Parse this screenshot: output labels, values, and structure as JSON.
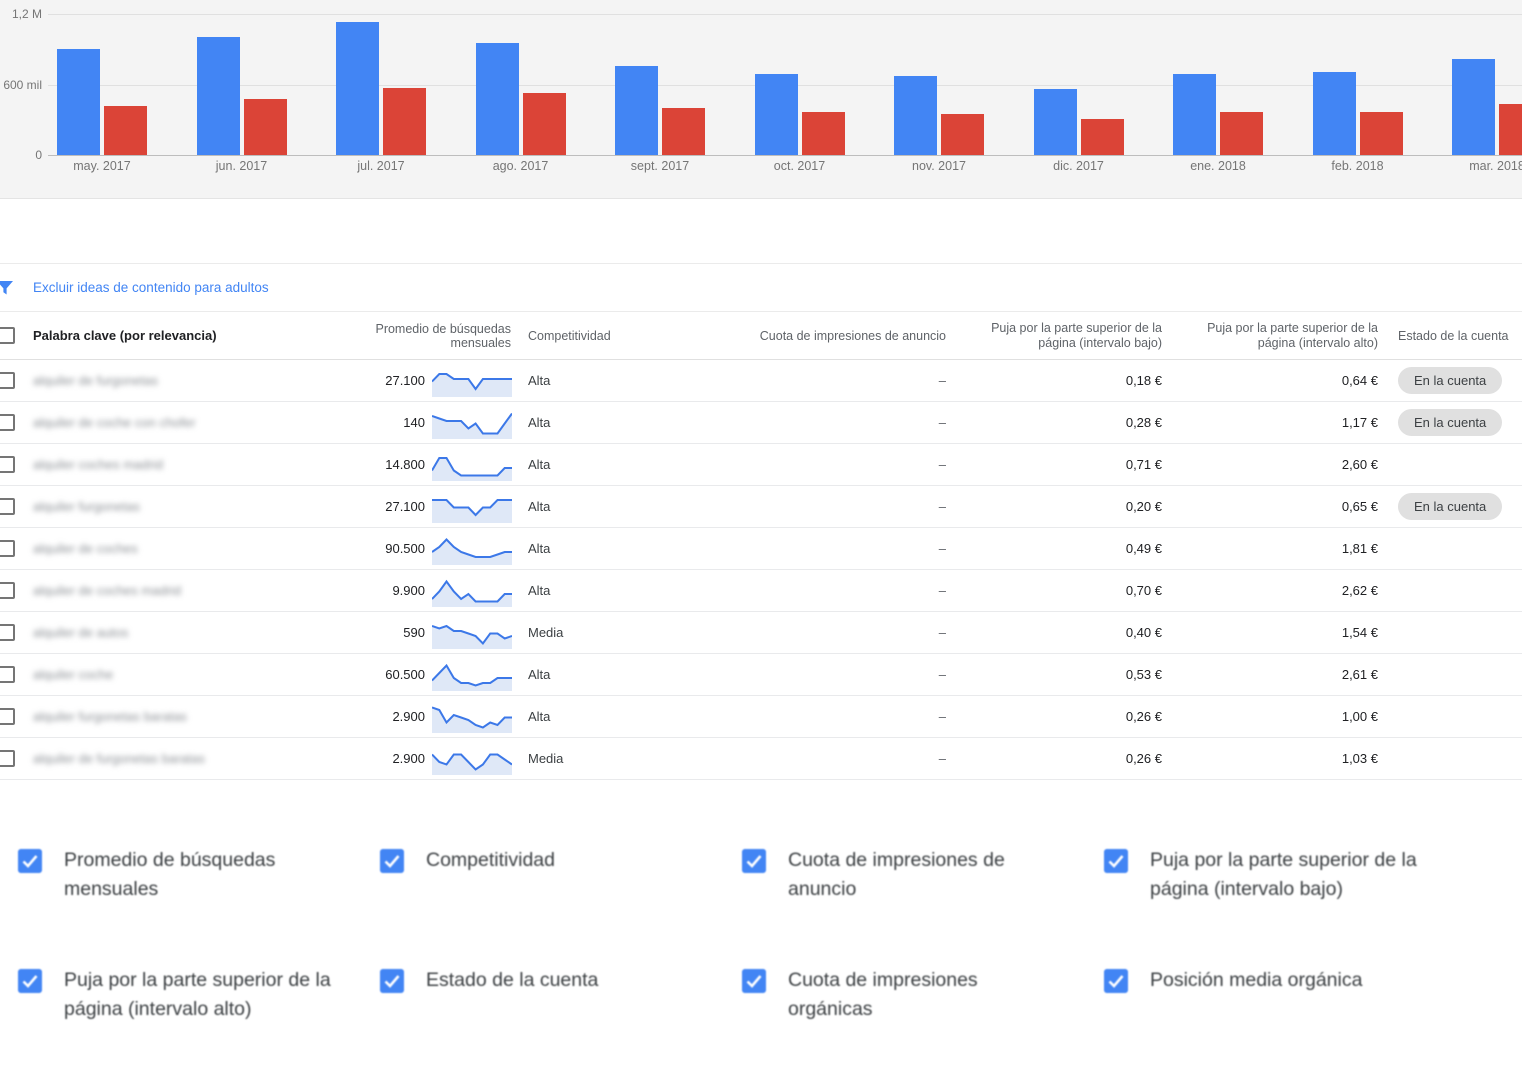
{
  "chart_data": {
    "type": "bar",
    "title": "",
    "xlabel": "",
    "ylabel": "",
    "categories": [
      "may. 2017",
      "jun. 2017",
      "jul. 2017",
      "ago. 2017",
      "sept. 2017",
      "oct. 2017",
      "nov. 2017",
      "dic. 2017",
      "ene. 2018",
      "feb. 2018",
      "mar. 2018"
    ],
    "series": [
      {
        "name": "serie-azul",
        "color": "#4285f4",
        "values": [
          900000,
          1000000,
          1130000,
          950000,
          760000,
          690000,
          670000,
          560000,
          690000,
          710000,
          820000
        ]
      },
      {
        "name": "serie-roja",
        "color": "#db4437",
        "values": [
          420000,
          480000,
          570000,
          530000,
          400000,
          370000,
          350000,
          310000,
          370000,
          370000,
          430000
        ]
      }
    ],
    "ylim": [
      0,
      1200000
    ],
    "yticks": [
      {
        "value": 1200000,
        "label": "1,2 M"
      },
      {
        "value": 600000,
        "label": "600 mil"
      },
      {
        "value": 0,
        "label": "0"
      }
    ],
    "grid": true,
    "legend": "none"
  },
  "filter": {
    "icon": "funnel-icon",
    "label": "Excluir ideas de contenido para adultos"
  },
  "table": {
    "columns": {
      "keyword": "Palabra clave (por relevancia)",
      "avg_searches": "Promedio de búsquedas mensuales",
      "competition": "Competitividad",
      "ad_impression_share": "Cuota de impresiones de anuncio",
      "bid_low": "Puja por la parte superior de la página (intervalo bajo)",
      "bid_high": "Puja por la parte superior de la página (intervalo alto)",
      "account_status": "Estado de la cuenta"
    },
    "rows": [
      {
        "keyword": "alquiler de furgonetas",
        "avg": "27.100",
        "trend": [
          5,
          8,
          8,
          6,
          6,
          6,
          2,
          6,
          6,
          6,
          6,
          6
        ],
        "competition": "Alta",
        "share": "–",
        "low": "0,18 €",
        "high": "0,64 €",
        "status": "En la cuenta"
      },
      {
        "keyword": "alquiler de coche con chofer",
        "avg": "140",
        "trend": [
          8,
          7,
          6,
          6,
          6,
          3,
          5,
          1,
          1,
          1,
          5,
          9
        ],
        "competition": "Alta",
        "share": "–",
        "low": "0,28 €",
        "high": "1,17 €",
        "status": "En la cuenta"
      },
      {
        "keyword": "alquiler coches madrid",
        "avg": "14.800",
        "trend": [
          3,
          8,
          8,
          3,
          1,
          1,
          1,
          1,
          1,
          1,
          4,
          4
        ],
        "competition": "Alta",
        "share": "–",
        "low": "0,71 €",
        "high": "2,60 €",
        "status": ""
      },
      {
        "keyword": "alquiler furgonetas",
        "avg": "27.100",
        "trend": [
          8,
          8,
          8,
          5,
          5,
          5,
          2,
          5,
          5,
          8,
          8,
          8
        ],
        "competition": "Alta",
        "share": "–",
        "low": "0,20 €",
        "high": "0,65 €",
        "status": "En la cuenta"
      },
      {
        "keyword": "alquiler de coches",
        "avg": "90.500",
        "trend": [
          4,
          6,
          9,
          6,
          4,
          3,
          2,
          2,
          2,
          3,
          4,
          4
        ],
        "competition": "Alta",
        "share": "–",
        "low": "0,49 €",
        "high": "1,81 €",
        "status": ""
      },
      {
        "keyword": "alquiler de coches madrid",
        "avg": "9.900",
        "trend": [
          2,
          5,
          9,
          5,
          2,
          4,
          1,
          1,
          1,
          1,
          4,
          4
        ],
        "competition": "Alta",
        "share": "–",
        "low": "0,70 €",
        "high": "2,62 €",
        "status": ""
      },
      {
        "keyword": "alquiler de autos",
        "avg": "590",
        "trend": [
          8,
          7,
          8,
          6,
          6,
          5,
          4,
          1,
          5,
          5,
          3,
          4
        ],
        "competition": "Media",
        "share": "–",
        "low": "0,40 €",
        "high": "1,54 €",
        "status": ""
      },
      {
        "keyword": "alquiler coche",
        "avg": "60.500",
        "trend": [
          3,
          6,
          9,
          4,
          2,
          2,
          1,
          2,
          2,
          4,
          4,
          4
        ],
        "competition": "Alta",
        "share": "–",
        "low": "0,53 €",
        "high": "2,61 €",
        "status": ""
      },
      {
        "keyword": "alquiler furgonetas baratas",
        "avg": "2.900",
        "trend": [
          9,
          8,
          3,
          6,
          5,
          4,
          2,
          1,
          3,
          2,
          5,
          5
        ],
        "competition": "Alta",
        "share": "–",
        "low": "0,26 €",
        "high": "1,00 €",
        "status": ""
      },
      {
        "keyword": "alquiler de furgonetas baratas",
        "avg": "2.900",
        "trend": [
          7,
          4,
          3,
          7,
          7,
          4,
          1,
          3,
          7,
          7,
          5,
          3
        ],
        "competition": "Media",
        "share": "–",
        "low": "0,26 €",
        "high": "1,03 €",
        "status": ""
      }
    ]
  },
  "options": {
    "items": [
      {
        "label": "Promedio de búsquedas mensuales",
        "checked": true
      },
      {
        "label": "Competitividad",
        "checked": true
      },
      {
        "label": "Cuota de impresiones de anuncio",
        "checked": true
      },
      {
        "label": "Puja por la parte superior de la página (intervalo bajo)",
        "checked": true
      },
      {
        "label": "Puja por la parte superior de la página (intervalo alto)",
        "checked": true
      },
      {
        "label": "Estado de la cuenta",
        "checked": true
      },
      {
        "label": "Cuota de impresiones orgánicas",
        "checked": true
      },
      {
        "label": "Posición media orgánica",
        "checked": true
      }
    ]
  },
  "colors": {
    "bar_blue": "#4285f4",
    "bar_red": "#db4437",
    "sparkline_line": "#3c78e8",
    "sparkline_fill": "#dfe8f7",
    "link_blue": "#4285f4",
    "badge_bg": "#e0e0e0"
  }
}
